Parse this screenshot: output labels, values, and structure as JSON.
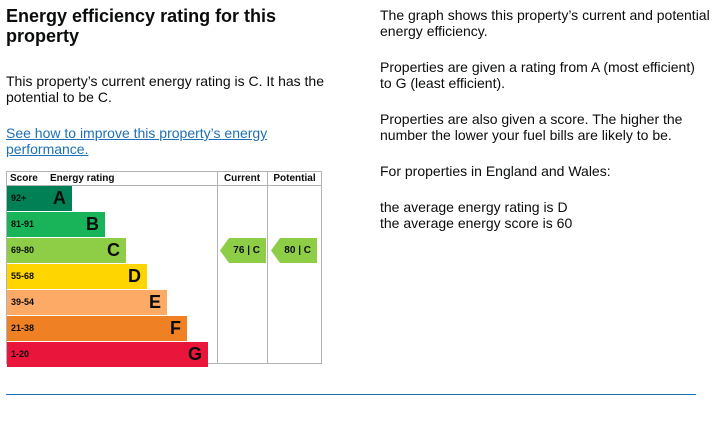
{
  "left": {
    "title": "Energy efficiency rating for this property",
    "current_text": "This property’s current energy rating is C. It has the potential to be C.",
    "improve_link": "See how to improve this property’s energy performance."
  },
  "chart": {
    "headers": {
      "score": "Score",
      "rating": "Energy rating",
      "current": "Current",
      "potential": "Potential"
    },
    "bands": [
      {
        "range": "92+",
        "letter": "A",
        "color": "#008054"
      },
      {
        "range": "81-91",
        "letter": "B",
        "color": "#19b459"
      },
      {
        "range": "69-80",
        "letter": "C",
        "color": "#8dce46"
      },
      {
        "range": "55-68",
        "letter": "D",
        "color": "#ffd500"
      },
      {
        "range": "39-54",
        "letter": "E",
        "color": "#fcaa65"
      },
      {
        "range": "21-38",
        "letter": "F",
        "color": "#ef8023"
      },
      {
        "range": "1-20",
        "letter": "G",
        "color": "#e9153b"
      }
    ],
    "current": {
      "label": "76 | C",
      "score": 76,
      "band": "C"
    },
    "potential": {
      "label": "80 | C",
      "score": 80,
      "band": "C"
    }
  },
  "right": {
    "p1": "The graph shows this property’s current and potential energy efficiency.",
    "p2": "Properties are given a rating from A (most efficient) to G (least efficient).",
    "p3": "Properties are also given a score. The higher the number the lower your fuel bills are likely to be.",
    "p4": "For properties in England and Wales:",
    "p5a": "the average energy rating is D",
    "p5b": "the average energy score is 60"
  }
}
